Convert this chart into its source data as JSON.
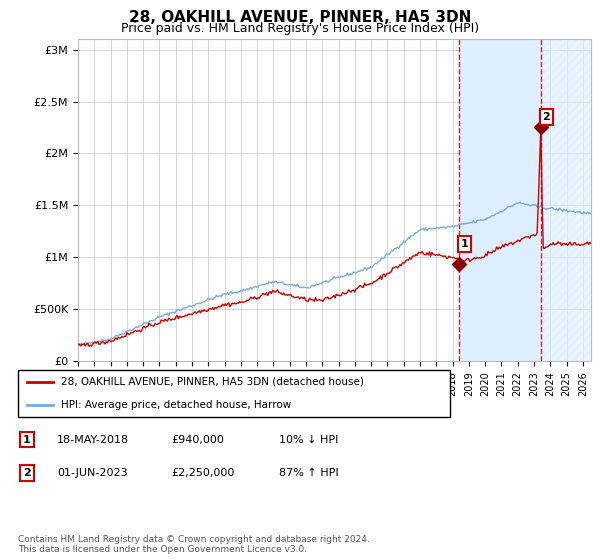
{
  "title": "28, OAKHILL AVENUE, PINNER, HA5 3DN",
  "subtitle": "Price paid vs. HM Land Registry's House Price Index (HPI)",
  "title_fontsize": 11,
  "subtitle_fontsize": 9,
  "xlim": [
    1995.0,
    2026.5
  ],
  "ylim": [
    0,
    3100000
  ],
  "yticks": [
    0,
    500000,
    1000000,
    1500000,
    2000000,
    2500000,
    3000000
  ],
  "ytick_labels": [
    "£0",
    "£500K",
    "£1M",
    "£1.5M",
    "£2M",
    "£2.5M",
    "£3M"
  ],
  "sale1_date_year": 2018.375,
  "sale1_price": 940000,
  "sale1_label": "1",
  "sale2_date_year": 2023.42,
  "sale2_price": 2250000,
  "sale2_label": "2",
  "hpi_line_color": "#7aabdb",
  "price_line_color": "#cc0000",
  "marker_color": "#880000",
  "vline_color": "#cc0000",
  "shade_color": "#ddeeff",
  "hatch_color": "#aabbcc",
  "legend_label1": "28, OAKHILL AVENUE, PINNER, HA5 3DN (detached house)",
  "legend_label2": "HPI: Average price, detached house, Harrow",
  "annotation1_date": "18-MAY-2018",
  "annotation1_price": "£940,000",
  "annotation1_hpi": "10% ↓ HPI",
  "annotation2_date": "01-JUN-2023",
  "annotation2_price": "£2,250,000",
  "annotation2_hpi": "87% ↑ HPI",
  "footnote": "Contains HM Land Registry data © Crown copyright and database right 2024.\nThis data is licensed under the Open Government Licence v3.0.",
  "background_color": "#ffffff",
  "grid_color": "#cccccc"
}
